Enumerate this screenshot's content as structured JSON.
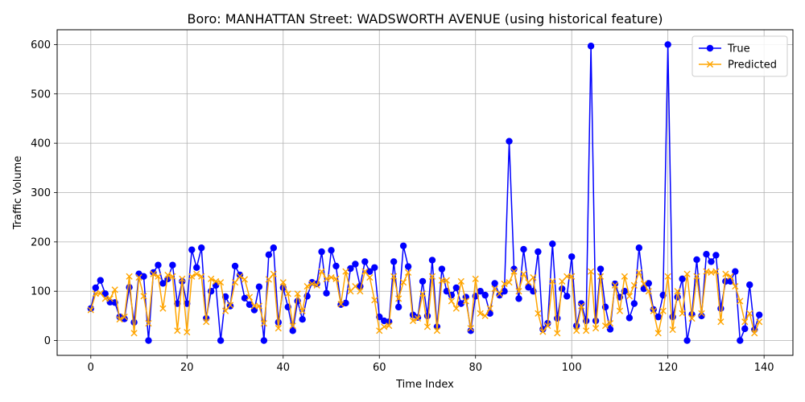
{
  "chart_data": {
    "type": "line",
    "title": "Boro: MANHATTAN Street: WADSWORTH AVENUE (using historical feature)",
    "xlabel": "Time Index",
    "ylabel": "Traffic Volume",
    "xlim": [
      -7,
      146
    ],
    "ylim": [
      -30,
      630
    ],
    "xticks": [
      0,
      20,
      40,
      60,
      80,
      100,
      120,
      140
    ],
    "yticks": [
      0,
      100,
      200,
      300,
      400,
      500,
      600
    ],
    "grid": true,
    "legend_position": "top-right",
    "series": [
      {
        "name": "True",
        "color": "#0000ff",
        "marker": "circle",
        "values": [
          65,
          107,
          122,
          95,
          78,
          77,
          48,
          44,
          108,
          37,
          135,
          130,
          0,
          138,
          153,
          116,
          125,
          153,
          75,
          120,
          75,
          184,
          148,
          188,
          45,
          100,
          112,
          0,
          89,
          70,
          151,
          133,
          86,
          73,
          62,
          109,
          0,
          174,
          188,
          37,
          107,
          68,
          20,
          80,
          43,
          90,
          118,
          115,
          180,
          96,
          183,
          151,
          73,
          76,
          146,
          155,
          110,
          160,
          140,
          148,
          48,
          40,
          38,
          160,
          68,
          192,
          150,
          52,
          47,
          120,
          50,
          163,
          28,
          145,
          100,
          92,
          107,
          75,
          88,
          20,
          90,
          100,
          92,
          55,
          116,
          92,
          100,
          404,
          145,
          85,
          185,
          108,
          100,
          180,
          23,
          35,
          196,
          45,
          105,
          90,
          170,
          30,
          75,
          40,
          597,
          40,
          145,
          68,
          23,
          115,
          88,
          100,
          46,
          75,
          188,
          105,
          116,
          63,
          48,
          92,
          600,
          48,
          88,
          125,
          0,
          53,
          164,
          50,
          175,
          160,
          173,
          65,
          120,
          120,
          140,
          0,
          24,
          113,
          22,
          52
        ]
      },
      {
        "name": "Predicted",
        "color": "#ffa500",
        "marker": "x",
        "values": [
          62,
          95,
          96,
          85,
          85,
          103,
          43,
          48,
          130,
          15,
          128,
          90,
          35,
          135,
          130,
          65,
          133,
          130,
          20,
          125,
          17,
          130,
          135,
          130,
          38,
          125,
          120,
          118,
          60,
          72,
          118,
          130,
          124,
          88,
          70,
          70,
          35,
          124,
          135,
          25,
          118,
          95,
          30,
          95,
          60,
          110,
          115,
          112,
          140,
          125,
          128,
          125,
          74,
          140,
          100,
          110,
          100,
          140,
          128,
          82,
          20,
          28,
          30,
          130,
          85,
          118,
          138,
          40,
          45,
          95,
          28,
          130,
          20,
          122,
          122,
          80,
          65,
          120,
          80,
          25,
          125,
          55,
          50,
          65,
          105,
          95,
          115,
          118,
          140,
          100,
          135,
          118,
          128,
          55,
          18,
          30,
          120,
          15,
          120,
          130,
          130,
          20,
          70,
          20,
          140,
          25,
          130,
          30,
          35,
          112,
          60,
          130,
          90,
          112,
          138,
          115,
          100,
          60,
          15,
          60,
          130,
          22,
          100,
          55,
          135,
          45,
          130,
          55,
          140,
          138,
          140,
          38,
          135,
          130,
          110,
          80,
          38,
          55,
          15,
          38
        ]
      }
    ]
  }
}
